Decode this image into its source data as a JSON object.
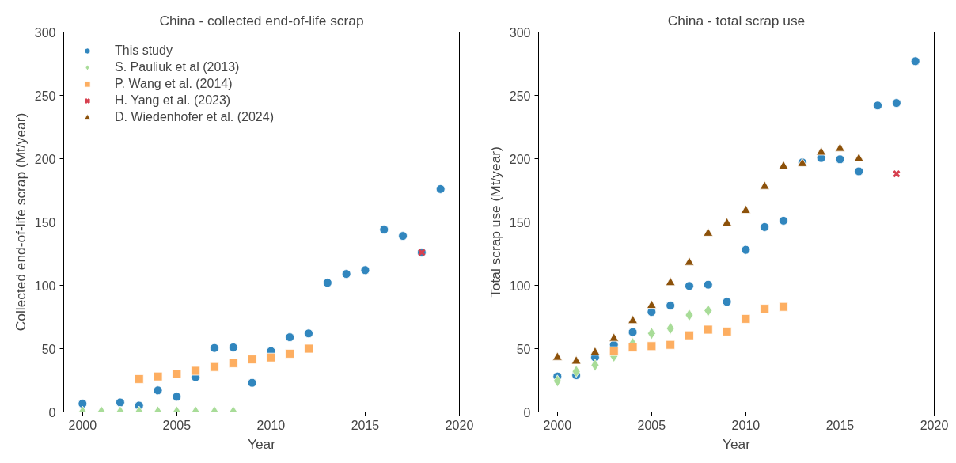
{
  "chart_data": [
    {
      "type": "scatter",
      "title": "China - collected end-of-life scrap",
      "xlabel": "Year",
      "ylabel": "Collected end-of-life scrap (Mt/year)",
      "xlim": [
        1999,
        2020
      ],
      "xticks": [
        2000,
        2005,
        2010,
        2015,
        2020
      ],
      "ylim": [
        0,
        300
      ],
      "yticks": [
        0,
        50,
        100,
        150,
        200,
        250,
        300
      ],
      "grid": false,
      "legend": "top left",
      "series": [
        {
          "name": "This study",
          "color": "#3186be",
          "marker": "circle",
          "x": [
            2000,
            2002,
            2003,
            2004,
            2005,
            2006,
            2007,
            2008,
            2009,
            2010,
            2011,
            2012,
            2013,
            2014,
            2015,
            2016,
            2017,
            2018,
            2019
          ],
          "values": [
            6.5,
            7.5,
            5,
            17,
            12,
            27.5,
            50.5,
            51,
            23,
            48,
            59,
            62,
            102,
            109,
            112,
            144,
            139,
            126,
            176
          ]
        },
        {
          "name": "S. Pauliuk et al (2013)",
          "color": "#a8dc98",
          "marker": "diamond",
          "x": [
            2000,
            2001,
            2002,
            2003,
            2004,
            2005,
            2006,
            2007,
            2008
          ],
          "values": [
            0,
            0,
            0,
            0,
            0,
            0,
            0,
            0,
            0
          ]
        },
        {
          "name": "P. Wang et al. (2014)",
          "color": "#fdae61",
          "marker": "square",
          "x": [
            2003,
            2004,
            2005,
            2006,
            2007,
            2008,
            2009,
            2010,
            2011,
            2012
          ],
          "values": [
            26,
            28,
            30,
            32.5,
            35.5,
            38.5,
            41.5,
            43,
            46,
            50
          ]
        },
        {
          "name": "H. Yang et al. (2023)",
          "color": "#d7404f",
          "marker": "cross",
          "x": [
            2018
          ],
          "values": [
            126
          ]
        },
        {
          "name": "D. Wiedenhofer et al. (2024)",
          "color": "#8c510a",
          "marker": "triangle"
        }
      ]
    },
    {
      "type": "scatter",
      "title": "China - total scrap use",
      "xlabel": "Year",
      "ylabel": "Total scrap use (Mt/year)",
      "xlim": [
        1999,
        2020
      ],
      "xticks": [
        2000,
        2005,
        2010,
        2015,
        2020
      ],
      "ylim": [
        0,
        300
      ],
      "yticks": [
        0,
        50,
        100,
        150,
        200,
        250,
        300
      ],
      "grid": false,
      "series": [
        {
          "color": "#3186be",
          "marker": "circle",
          "x": [
            2000,
            2001,
            2002,
            2003,
            2004,
            2005,
            2006,
            2007,
            2008,
            2009,
            2010,
            2011,
            2012,
            2013,
            2014,
            2015,
            2016,
            2017,
            2018,
            2019
          ],
          "values": [
            28,
            29,
            43,
            53,
            63,
            79,
            84,
            99.5,
            100.5,
            87,
            128,
            146,
            151,
            197,
            200.5,
            199.5,
            190,
            242,
            244,
            277
          ]
        },
        {
          "color": "#a8dc98",
          "marker": "diamond",
          "x": [
            2000,
            2001,
            2002,
            2003,
            2004,
            2005,
            2006,
            2007,
            2008
          ],
          "values": [
            24.5,
            32,
            37,
            44,
            54,
            62,
            66,
            76.5,
            80
          ]
        },
        {
          "color": "#fdae61",
          "marker": "square",
          "x": [
            2003,
            2004,
            2005,
            2006,
            2007,
            2008,
            2009,
            2010,
            2011,
            2012
          ],
          "values": [
            48,
            51,
            52,
            53,
            60.5,
            65,
            63.5,
            73.5,
            81.5,
            83
          ]
        },
        {
          "color": "#d7404f",
          "marker": "cross",
          "x": [
            2018
          ],
          "values": [
            188
          ]
        },
        {
          "color": "#8c510a",
          "marker": "triangle",
          "x": [
            2000,
            2001,
            2002,
            2003,
            2004,
            2005,
            2006,
            2007,
            2008,
            2009,
            2010,
            2011,
            2012,
            2013,
            2014,
            2015,
            2016
          ],
          "values": [
            43,
            40,
            47,
            58,
            72,
            84,
            102,
            118,
            141,
            149,
            159,
            178,
            194,
            196,
            205,
            208,
            200
          ]
        }
      ]
    }
  ]
}
